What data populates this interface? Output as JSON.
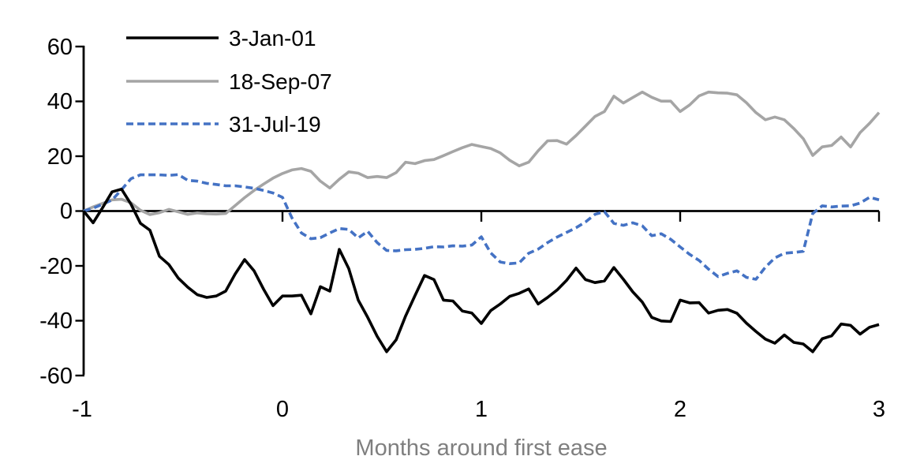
{
  "chart_data": {
    "type": "line",
    "title": "",
    "xlabel": "Months around first ease",
    "ylabel": "",
    "xlim": [
      -1,
      3
    ],
    "ylim": [
      -60,
      60
    ],
    "grid": false,
    "legend_position": "top-left-inside",
    "x_tick_labels": [
      "-1",
      "0",
      "1",
      "2",
      "3"
    ],
    "x_ticks": [
      -1,
      0,
      1,
      2,
      3
    ],
    "y_tick_labels": [
      "60",
      "40",
      "20",
      "0",
      "-20",
      "-40",
      "-60"
    ],
    "y_ticks": [
      60,
      40,
      20,
      0,
      -20,
      -40,
      -60
    ],
    "x_start": -1,
    "x_step": 0.047619,
    "x_unit": "months (business-day sampling, 21 per month)",
    "series": [
      {
        "name": "3-Jan-01",
        "color": "#000000",
        "dash": "solid",
        "values": [
          0,
          -4.3,
          1.2,
          7,
          8,
          2.5,
          -4.5,
          -7,
          -16.5,
          -19.5,
          -24.5,
          -27.8,
          -30.5,
          -31.5,
          -31,
          -29.2,
          -23,
          -17.7,
          -21.8,
          -28.5,
          -34.5,
          -31,
          -31,
          -30.7,
          -37.5,
          -27.6,
          -29.2,
          -14,
          -21,
          -32.5,
          -38.8,
          -45.7,
          -51.3,
          -47,
          -38.3,
          -30.8,
          -23.5,
          -25,
          -32.5,
          -32.8,
          -36.5,
          -37.2,
          -41,
          -36.3,
          -33.9,
          -31.1,
          -30,
          -28.4,
          -33.9,
          -31.5,
          -28.8,
          -25.3,
          -20.8,
          -25,
          -26.1,
          -25.5,
          -20.6,
          -24.9,
          -29.5,
          -33.2,
          -38.8,
          -40.1,
          -40.3,
          -32.5,
          -33.5,
          -33.4,
          -37.2,
          -36.2,
          -35.9,
          -37.3,
          -40.9,
          -43.9,
          -46.7,
          -48.2,
          -45.2,
          -47.9,
          -48.5,
          -51.3,
          -46.6,
          -45.5,
          -41.2,
          -41.7,
          -44.9,
          -42.4,
          -41.4
        ]
      },
      {
        "name": "18-Sep-07",
        "color": "#a5a5a5",
        "dash": "solid",
        "values": [
          0,
          1.5,
          2.8,
          4.1,
          4.3,
          3,
          0.3,
          -1.3,
          -0.6,
          0.6,
          -0.3,
          -1.2,
          -0.7,
          -1,
          -1.1,
          -0.9,
          2,
          4.9,
          7.5,
          9.8,
          12,
          13.7,
          15,
          15.5,
          14.5,
          10.9,
          8.4,
          11.6,
          14.3,
          13.8,
          12.2,
          12.6,
          12.2,
          14,
          17.8,
          17.3,
          18.4,
          18.8,
          20.2,
          21.7,
          23.1,
          24.3,
          23.5,
          22.8,
          21.2,
          18.5,
          16.5,
          17.8,
          22,
          25.6,
          25.7,
          24.4,
          27.5,
          31,
          34.5,
          36.3,
          41.9,
          39.4,
          41.4,
          43.4,
          41.5,
          40.1,
          40.1,
          36.3,
          38.7,
          42,
          43.4,
          43.1,
          43,
          42.4,
          39.5,
          35.9,
          33.3,
          34.3,
          33.3,
          30.1,
          26.4,
          20.3,
          23.4,
          23.9,
          27,
          23.4,
          28.6,
          32,
          35.9
        ]
      },
      {
        "name": "31-Jul-19",
        "color": "#4472c4",
        "dash": "dashed",
        "values": [
          0,
          1,
          2.5,
          4,
          7.8,
          11.8,
          13.2,
          13.2,
          13.2,
          13,
          13.3,
          11.2,
          10.9,
          10.1,
          9.7,
          9.2,
          9.2,
          8.8,
          8.3,
          7.5,
          6.6,
          5,
          -2.5,
          -8,
          -10.1,
          -9.7,
          -8,
          -6.4,
          -6.7,
          -9.8,
          -7.4,
          -11.5,
          -14.4,
          -14.5,
          -14.1,
          -14,
          -13.6,
          -13,
          -13.1,
          -12.7,
          -12.8,
          -12.4,
          -9.4,
          -15.3,
          -18.6,
          -19.2,
          -18.9,
          -15.4,
          -13.9,
          -11.5,
          -9.5,
          -7.8,
          -6.1,
          -4,
          -1.2,
          -0.2,
          -4.5,
          -5.2,
          -4.3,
          -5.4,
          -9,
          -8.3,
          -10.3,
          -13.1,
          -15.8,
          -18,
          -21.2,
          -23.9,
          -22.7,
          -21.8,
          -24.2,
          -24.9,
          -20.5,
          -17.1,
          -15.4,
          -15.1,
          -14.7,
          -0.9,
          1.9,
          1.5,
          1.8,
          1.9,
          2.9,
          5,
          4.1
        ]
      }
    ]
  }
}
